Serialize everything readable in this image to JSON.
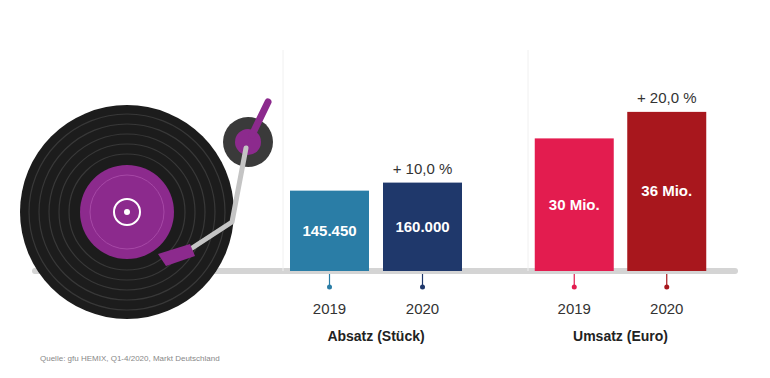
{
  "chart_data": [
    {
      "type": "bar",
      "xlabel": "Absatz (Stück)",
      "categories": [
        "2019",
        "2020"
      ],
      "values": [
        145450,
        160000
      ],
      "value_labels": [
        "145.450",
        "160.000"
      ],
      "colors": [
        "#2a7da6",
        "#1f386b"
      ],
      "ylim": [
        0,
        400000
      ],
      "data_labels": true,
      "tick_labels": "x",
      "annotation": "+ 10,0 %"
    },
    {
      "type": "bar",
      "xlabel": "Umsatz (Euro)",
      "categories": [
        "2019",
        "2020"
      ],
      "values": [
        30,
        36
      ],
      "value_labels": [
        "30 Mio.",
        "36 Mio."
      ],
      "colors": [
        "#e31c4f",
        "#a8171d"
      ],
      "ylim": [
        0,
        50
      ],
      "data_labels": true,
      "tick_labels": "x",
      "annotation": "+ 20,0 %"
    }
  ],
  "source": "Quelle: gfu HEMIX, Q1-4/2020, Markt Deutschland"
}
